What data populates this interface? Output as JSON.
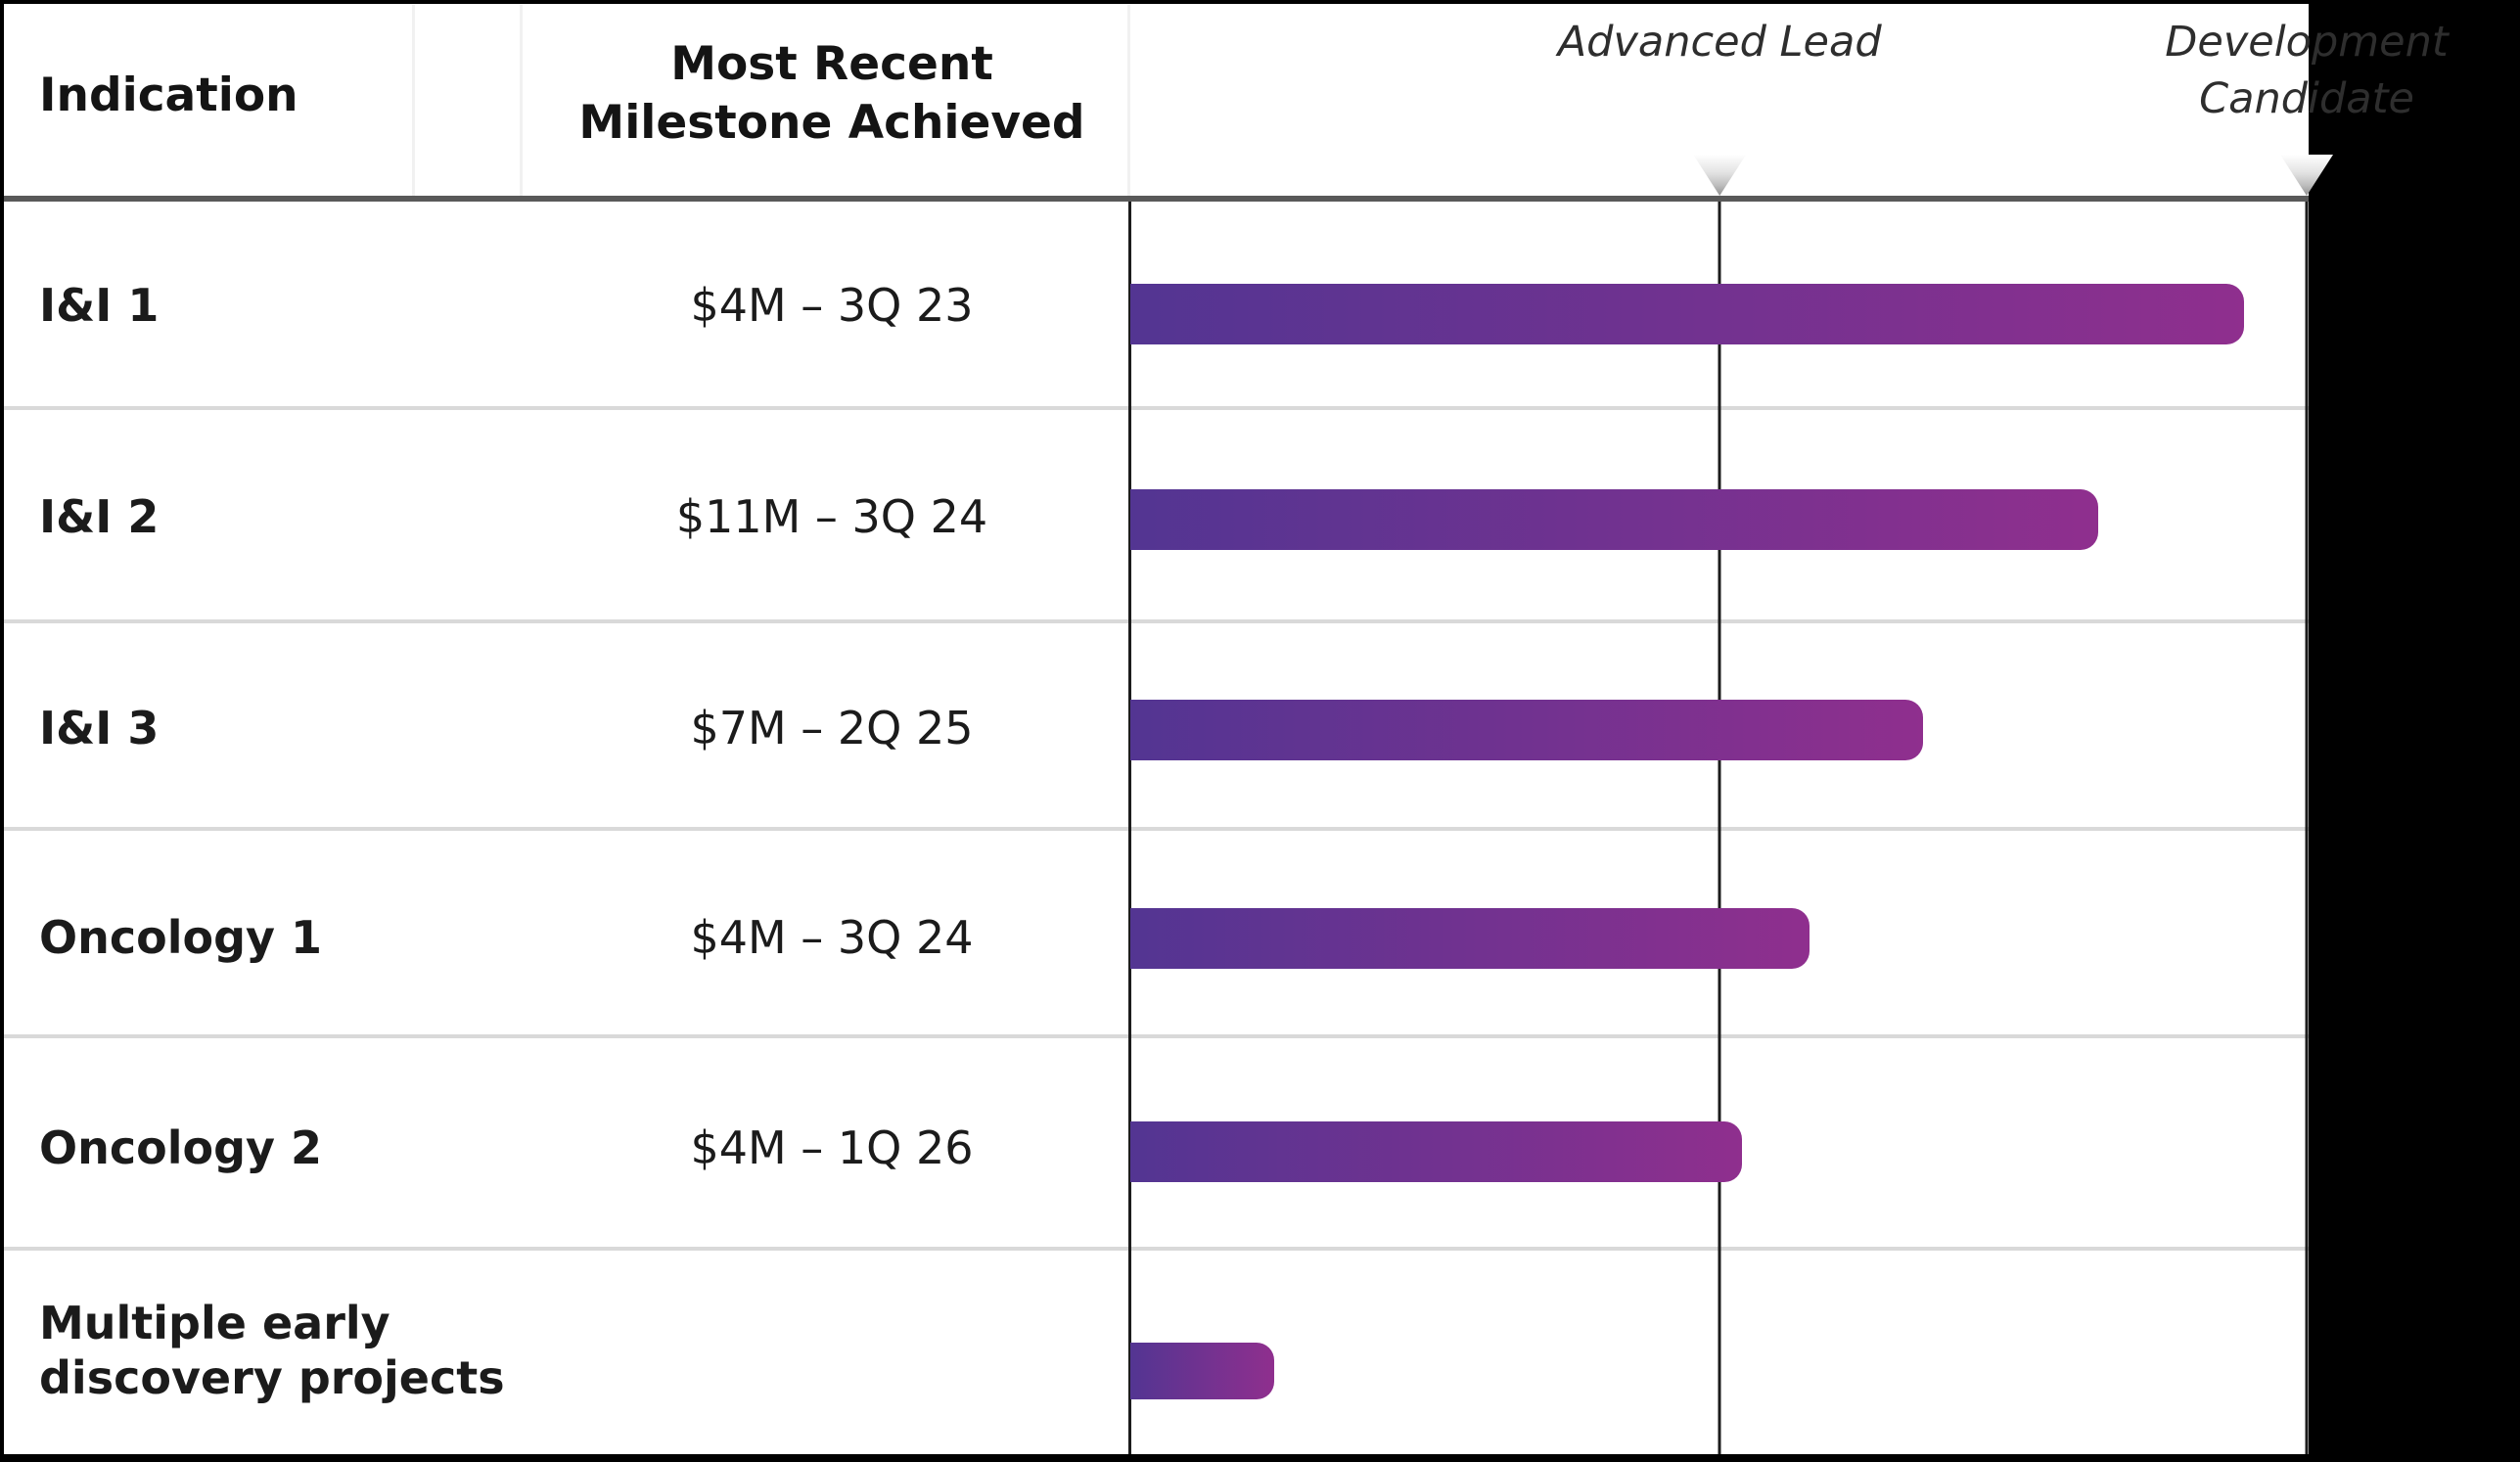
{
  "header": {
    "indication_label": "Indication",
    "milestone_label_display": "Most Recent\nMilestone Achieved"
  },
  "colors": {
    "bar_gradient_start": "#533592",
    "bar_gradient_end": "#8F2F8E",
    "header_rule": "#595959",
    "row_separator": "#d9d9d9",
    "marker_line": "#1c1c1c",
    "background_outside": "#000000"
  },
  "chart_data": {
    "type": "bar",
    "orientation": "horizontal",
    "title": "",
    "columns": [
      "Indication",
      "Most Recent Milestone Achieved"
    ],
    "xlim_pct": [
      0,
      100
    ],
    "grid": "stage marker vertical lines only",
    "stage_markers": [
      {
        "label": "Advanced Lead",
        "position_pct": 50.1
      },
      {
        "label": "Development Candidate",
        "position_pct": 100
      }
    ],
    "rows": [
      {
        "indication": "I&I 1",
        "milestone": "$4M – 3Q 23",
        "value_pct": 94.7
      },
      {
        "indication": "I&I 2",
        "milestone": "$11M – 3Q 24",
        "value_pct": 82.3
      },
      {
        "indication": "I&I 3",
        "milestone": "$7M – 2Q 25",
        "value_pct": 67.4
      },
      {
        "indication": "Oncology 1",
        "milestone": "$4M – 3Q 24",
        "value_pct": 57.7
      },
      {
        "indication": "Oncology 2",
        "milestone": "$4M – 1Q 26",
        "value_pct": 52.0
      },
      {
        "indication": "Multiple early discovery projects",
        "milestone": "",
        "value_pct": 12.2
      }
    ]
  }
}
